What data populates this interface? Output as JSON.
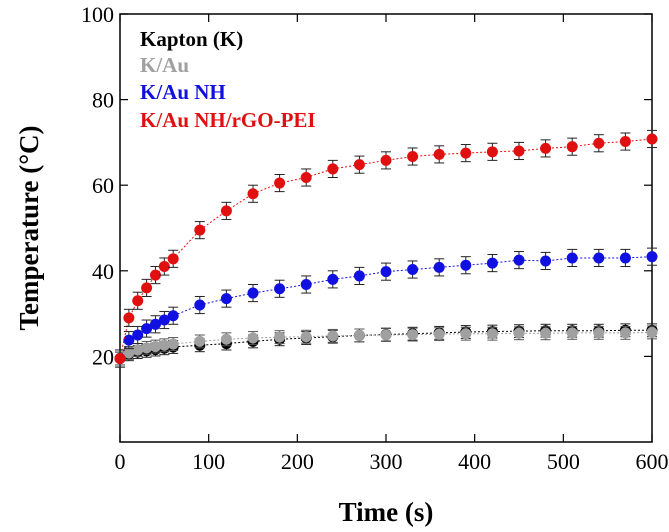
{
  "chart_data": {
    "type": "scatter",
    "title": "",
    "xlabel": "Time (s)",
    "ylabel": "Temperature (°C)",
    "xlim": [
      0,
      600
    ],
    "ylim": [
      0,
      100
    ],
    "xticks": [
      "0",
      "100",
      "200",
      "300",
      "400",
      "500",
      "600"
    ],
    "yticks": [
      "20",
      "40",
      "60",
      "80",
      "100"
    ],
    "grid": false,
    "legend_position": "top-left",
    "series": [
      {
        "name": "Kapton (K)",
        "color": "#000000",
        "x": [
          0,
          10,
          20,
          30,
          40,
          50,
          60,
          90,
          120,
          150,
          180,
          210,
          240,
          270,
          300,
          330,
          360,
          390,
          420,
          450,
          480,
          510,
          540,
          570,
          600
        ],
        "y": [
          19.5,
          20.5,
          21.0,
          21.3,
          21.6,
          21.9,
          22.2,
          22.6,
          23.0,
          23.5,
          24.0,
          24.3,
          24.6,
          24.9,
          25.1,
          25.3,
          25.5,
          25.7,
          25.8,
          25.9,
          26.0,
          26.0,
          26.0,
          26.1,
          26.1
        ],
        "yerr": 1.5
      },
      {
        "name": "K/Au",
        "color": "#a0a0a0",
        "x": [
          0,
          10,
          20,
          30,
          40,
          50,
          60,
          90,
          120,
          150,
          180,
          210,
          240,
          270,
          300,
          330,
          360,
          390,
          420,
          450,
          480,
          510,
          540,
          570,
          600
        ],
        "y": [
          19.5,
          20.8,
          21.5,
          22.0,
          22.3,
          22.6,
          22.9,
          23.5,
          24.0,
          24.3,
          24.5,
          24.6,
          24.8,
          24.9,
          25.0,
          25.1,
          25.2,
          25.3,
          25.3,
          25.4,
          25.4,
          25.5,
          25.5,
          25.5,
          25.6
        ],
        "yerr": 1.5
      },
      {
        "name": "K/Au NH",
        "color": "#1010e0",
        "x": [
          0,
          10,
          20,
          30,
          40,
          50,
          60,
          90,
          120,
          150,
          180,
          210,
          240,
          270,
          300,
          330,
          360,
          390,
          420,
          450,
          480,
          510,
          540,
          570,
          600
        ],
        "y": [
          19.5,
          23.8,
          25.0,
          26.5,
          27.5,
          28.5,
          29.5,
          32.0,
          33.5,
          34.8,
          35.8,
          36.8,
          38.0,
          38.8,
          39.8,
          40.3,
          40.8,
          41.3,
          41.8,
          42.5,
          42.3,
          43.0,
          43.0,
          43.0,
          43.3
        ],
        "yerr": 2.0
      },
      {
        "name": "K/Au NH/rGO-PEI",
        "color": "#e01010",
        "x": [
          0,
          10,
          20,
          30,
          40,
          50,
          60,
          90,
          120,
          150,
          180,
          210,
          240,
          270,
          300,
          330,
          360,
          390,
          420,
          450,
          480,
          510,
          540,
          570,
          600
        ],
        "y": [
          19.5,
          29.0,
          33.0,
          36.0,
          39.0,
          41.0,
          42.8,
          49.5,
          54.0,
          58.0,
          60.5,
          61.8,
          63.8,
          64.8,
          65.8,
          66.7,
          67.2,
          67.5,
          67.8,
          68.0,
          68.6,
          69.0,
          69.8,
          70.2,
          70.8
        ],
        "yerr": 2.0
      }
    ]
  }
}
